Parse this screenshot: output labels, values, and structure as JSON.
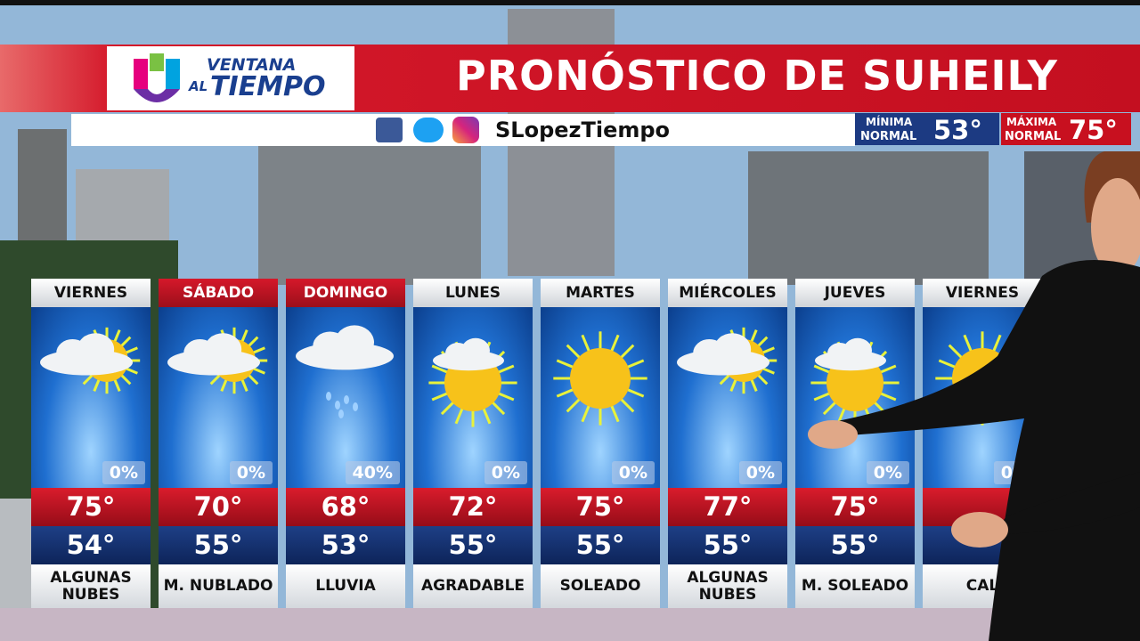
{
  "header": {
    "logo_top": "VENTANA",
    "logo_al": "AL",
    "logo_bottom": "TIEMPO",
    "title": "PRONÓSTICO DE SUHEILY"
  },
  "subheader": {
    "handle": "SLopezTiempo",
    "min_label_1": "MÍNIMA",
    "min_label_2": "NORMAL",
    "min_value": "53°",
    "max_label_1": "MÁXIMA",
    "max_label_2": "NORMAL",
    "max_value": "75°"
  },
  "days": [
    {
      "day": "VIERNES",
      "precip": "0%",
      "high": "75°",
      "low": "54°",
      "condition": [
        "ALGUNAS",
        "NUBES"
      ]
    },
    {
      "day": "SÁBADO",
      "precip": "0%",
      "high": "70°",
      "low": "55°",
      "condition": [
        "M. NUBLADO"
      ]
    },
    {
      "day": "DOMINGO",
      "precip": "40%",
      "high": "68°",
      "low": "53°",
      "condition": [
        "LLUVIA"
      ]
    },
    {
      "day": "LUNES",
      "precip": "0%",
      "high": "72°",
      "low": "55°",
      "condition": [
        "AGRADABLE"
      ]
    },
    {
      "day": "MARTES",
      "precip": "0%",
      "high": "75°",
      "low": "55°",
      "condition": [
        "SOLEADO"
      ]
    },
    {
      "day": "MIÉRCOLES",
      "precip": "0%",
      "high": "77°",
      "low": "55°",
      "condition": [
        "ALGUNAS",
        "NUBES"
      ]
    },
    {
      "day": "JUEVES",
      "precip": "0%",
      "high": "75°",
      "low": "55°",
      "condition": [
        "M. SOLEADO"
      ]
    },
    {
      "day": "VIERNES",
      "precip": "0%",
      "high": null,
      "low": null,
      "condition": [
        "CAL"
      ]
    }
  ]
}
